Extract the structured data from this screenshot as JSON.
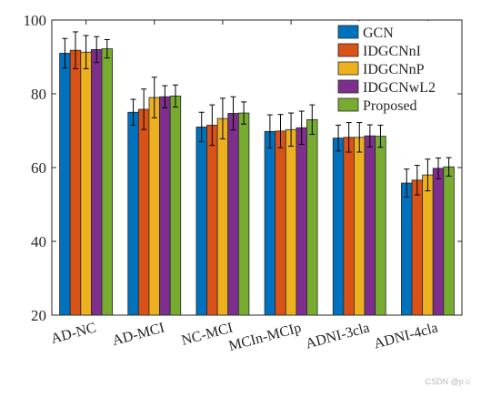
{
  "chart_data": {
    "type": "bar",
    "categories": [
      "AD-NC",
      "AD-MCI",
      "NC-MCI",
      "MCIn-MCIp",
      "ADNI-3cla",
      "ADNI-4cla"
    ],
    "series": [
      {
        "name": "GCN",
        "color": "#0072BD",
        "values": [
          91.0,
          75.0,
          71.0,
          69.8,
          68.0,
          55.8
        ],
        "errors": [
          4.0,
          3.5,
          4.0,
          4.5,
          3.5,
          3.8
        ]
      },
      {
        "name": "IDGCNnI",
        "color": "#D95319",
        "values": [
          91.8,
          75.8,
          71.5,
          69.9,
          68.2,
          56.6
        ],
        "errors": [
          5.0,
          5.5,
          5.5,
          4.5,
          4.0,
          4.0
        ]
      },
      {
        "name": "IDGCNnP",
        "color": "#EDB120",
        "values": [
          91.3,
          79.0,
          73.3,
          70.3,
          68.2,
          58.0
        ],
        "errors": [
          4.5,
          5.5,
          5.5,
          4.5,
          4.0,
          4.3
        ]
      },
      {
        "name": "IDGCNwL2",
        "color": "#7E2F8E",
        "values": [
          92.0,
          79.2,
          74.7,
          70.8,
          68.6,
          59.8
        ],
        "errors": [
          3.5,
          3.0,
          4.5,
          4.5,
          3.0,
          2.8
        ]
      },
      {
        "name": "Proposed",
        "color": "#77AC30",
        "values": [
          92.2,
          79.4,
          74.8,
          73.0,
          68.5,
          60.2
        ],
        "errors": [
          2.5,
          3.0,
          3.0,
          4.0,
          3.0,
          2.5
        ]
      }
    ],
    "ylim": [
      20,
      100
    ],
    "yticks": [
      20,
      40,
      60,
      80,
      100
    ],
    "title": "",
    "xlabel": "",
    "ylabel": "",
    "legend_position": "top-right",
    "grid": false
  },
  "watermark": "CSDN @p☺"
}
